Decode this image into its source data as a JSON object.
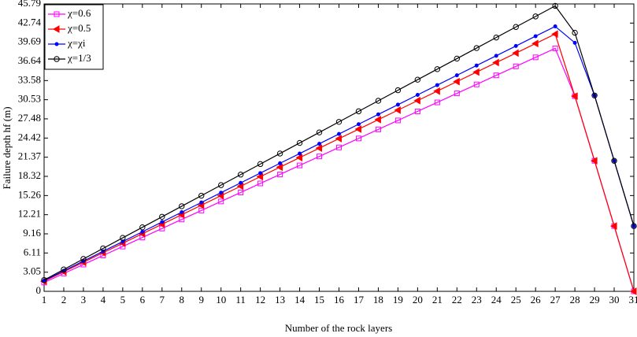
{
  "chart_data": {
    "type": "line",
    "xlabel": "Number of the rock layers",
    "ylabel": "Failure depth hf (m)",
    "x": [
      1,
      2,
      3,
      4,
      5,
      6,
      7,
      8,
      9,
      10,
      11,
      12,
      13,
      14,
      15,
      16,
      17,
      18,
      19,
      20,
      21,
      22,
      23,
      24,
      25,
      26,
      27,
      28,
      29,
      30,
      31
    ],
    "series": [
      {
        "name": "χ=0.6",
        "color": "#ff00ff",
        "marker": "square",
        "values": [
          1.4,
          2.84,
          4.27,
          5.71,
          7.14,
          8.58,
          10.01,
          11.45,
          12.88,
          14.32,
          15.75,
          17.19,
          18.62,
          20.06,
          21.49,
          22.93,
          24.36,
          25.8,
          27.23,
          28.67,
          30.1,
          31.54,
          32.97,
          34.41,
          35.84,
          37.28,
          38.71,
          31.1,
          20.8,
          10.4,
          0
        ]
      },
      {
        "name": "χ=0.5",
        "color": "#ff0000",
        "marker": "triangle-left",
        "values": [
          1.6,
          3.12,
          4.63,
          6.15,
          7.66,
          9.18,
          10.69,
          12.21,
          13.72,
          15.24,
          16.75,
          18.27,
          19.78,
          21.3,
          22.81,
          24.33,
          25.84,
          27.36,
          28.87,
          30.39,
          31.9,
          33.42,
          34.93,
          36.45,
          37.96,
          39.48,
          40.99,
          31.1,
          20.8,
          10.4,
          0
        ]
      },
      {
        "name": "χ=χi",
        "color": "#0000ff",
        "marker": "dot",
        "values": [
          1.7,
          3.26,
          4.82,
          6.37,
          7.93,
          9.49,
          11.05,
          12.61,
          14.16,
          15.72,
          17.28,
          18.84,
          20.4,
          21.95,
          23.51,
          25.07,
          26.63,
          28.19,
          29.74,
          31.3,
          32.86,
          34.42,
          35.98,
          37.53,
          39.09,
          40.65,
          42.21,
          39.6,
          31.2,
          20.8,
          10.4
        ]
      },
      {
        "name": "χ=1/3",
        "color": "#000000",
        "marker": "circle",
        "values": [
          1.8,
          3.48,
          5.16,
          6.84,
          8.52,
          10.2,
          11.88,
          13.56,
          15.24,
          16.92,
          18.6,
          20.28,
          21.96,
          23.64,
          25.32,
          27.0,
          28.68,
          30.36,
          32.04,
          33.72,
          35.4,
          37.08,
          38.76,
          40.44,
          42.12,
          43.8,
          45.48,
          41.2,
          31.2,
          20.8,
          10.4
        ]
      }
    ],
    "xlim": [
      1,
      31
    ],
    "xticks": [
      1,
      2,
      3,
      4,
      5,
      6,
      7,
      8,
      9,
      10,
      11,
      12,
      13,
      14,
      15,
      16,
      17,
      18,
      19,
      20,
      21,
      22,
      23,
      24,
      25,
      26,
      27,
      28,
      29,
      30,
      31
    ],
    "ylim": [
      0,
      45.79
    ],
    "yticks": [
      0,
      3.05,
      6.11,
      9.16,
      12.21,
      15.26,
      18.32,
      21.37,
      24.42,
      27.48,
      30.53,
      33.58,
      36.64,
      39.69,
      42.74,
      45.79
    ],
    "grid": false,
    "legend": "upper-left"
  }
}
